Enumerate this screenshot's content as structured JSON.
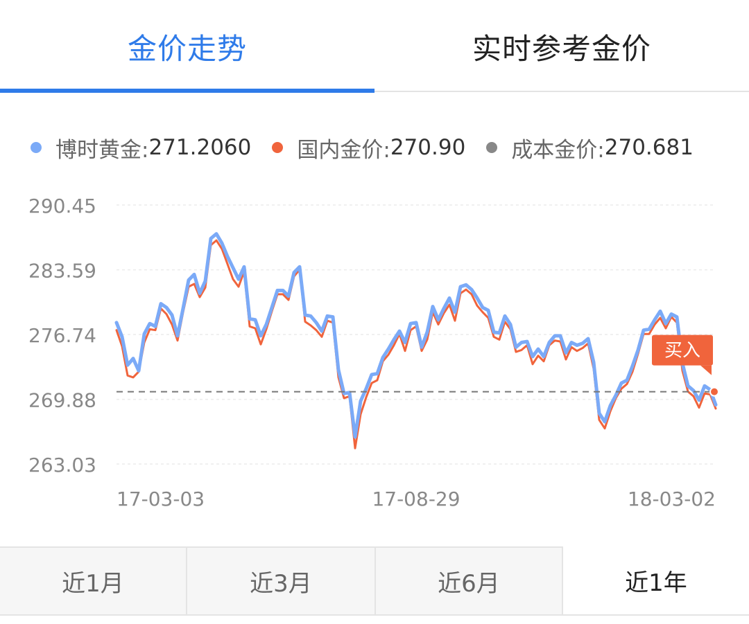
{
  "tabs": [
    {
      "label": "金价走势",
      "active": true
    },
    {
      "label": "实时参考金价",
      "active": false
    }
  ],
  "legend": [
    {
      "label": "博时黄金:",
      "value": "271.2060",
      "color": "#7baaf7"
    },
    {
      "label": "国内金价:",
      "value": "270.90",
      "color": "#f0643c"
    },
    {
      "label": "成本金价:",
      "value": "270.681",
      "color": "#888888"
    }
  ],
  "buy_label": "买入",
  "periods": [
    {
      "label": "近1月",
      "active": false
    },
    {
      "label": "近3月",
      "active": false
    },
    {
      "label": "近6月",
      "active": false
    },
    {
      "label": "近1年",
      "active": true
    }
  ],
  "chart_data": {
    "type": "line",
    "y_ticks": [
      "290.45",
      "283.59",
      "276.74",
      "269.88",
      "263.03"
    ],
    "ylim": [
      263.03,
      290.45
    ],
    "x_ticks": [
      "17-03-03",
      "17-08-29",
      "18-03-02"
    ],
    "x_range": [
      "2017-03-03",
      "2018-03-02"
    ],
    "grid": true,
    "reference_line": {
      "name": "成本金价",
      "value": 270.681
    },
    "series": [
      {
        "name": "博时黄金",
        "color": "#7baaf7",
        "values": [
          278.0,
          276.5,
          273.5,
          274.2,
          272.9,
          276.8,
          277.9,
          277.6,
          280.0,
          279.6,
          278.8,
          276.6,
          279.5,
          282.5,
          283.1,
          281.1,
          282.4,
          286.9,
          287.4,
          286.4,
          285.0,
          283.8,
          282.6,
          283.9,
          278.4,
          278.3,
          276.6,
          277.8,
          279.6,
          281.4,
          281.4,
          280.8,
          283.3,
          283.9,
          278.8,
          278.7,
          278.0,
          277.1,
          278.7,
          278.6,
          273.0,
          270.5,
          270.6,
          265.9,
          269.7,
          271.0,
          272.5,
          272.6,
          274.3,
          275.2,
          276.2,
          277.1,
          275.9,
          277.9,
          278.0,
          275.4,
          277.0,
          279.7,
          278.3,
          279.5,
          280.6,
          279.1,
          281.8,
          282.0,
          281.5,
          280.6,
          279.6,
          279.3,
          277.0,
          276.9,
          278.7,
          277.8,
          275.4,
          275.9,
          276.0,
          274.4,
          275.2,
          274.4,
          275.9,
          276.6,
          276.6,
          274.8,
          275.9,
          275.6,
          275.8,
          276.3,
          273.8,
          268.4,
          267.5,
          269.2,
          270.3,
          271.6,
          271.9,
          273.4,
          275.1,
          277.2,
          277.3,
          278.3,
          279.2,
          277.9,
          278.9,
          278.6,
          273.7,
          271.3,
          270.8,
          269.8,
          271.3,
          270.9,
          269.3
        ]
      },
      {
        "name": "国内金价",
        "color": "#f0643c",
        "values": [
          277.2,
          275.5,
          272.4,
          272.2,
          272.8,
          275.9,
          277.3,
          277.2,
          279.5,
          278.9,
          277.8,
          276.1,
          279.1,
          281.8,
          282.1,
          280.7,
          281.7,
          286.2,
          286.7,
          285.8,
          284.2,
          282.6,
          281.8,
          283.4,
          277.6,
          277.4,
          275.7,
          277.3,
          279.2,
          281.0,
          281.0,
          280.4,
          282.9,
          283.6,
          278.1,
          277.7,
          277.2,
          276.5,
          278.2,
          278.0,
          272.2,
          270.0,
          270.2,
          264.7,
          268.3,
          270.1,
          271.6,
          271.9,
          273.9,
          274.6,
          275.6,
          276.8,
          275.0,
          277.2,
          277.6,
          275.0,
          276.2,
          279.1,
          277.8,
          279.0,
          279.9,
          278.2,
          281.1,
          281.5,
          281.0,
          279.8,
          279.1,
          278.5,
          276.5,
          276.2,
          278.1,
          277.3,
          274.9,
          275.1,
          275.6,
          273.6,
          274.5,
          273.9,
          275.6,
          276.1,
          276.0,
          274.1,
          275.4,
          275.0,
          275.3,
          275.8,
          273.1,
          267.7,
          266.8,
          268.6,
          270.0,
          271.0,
          271.5,
          272.8,
          274.7,
          276.8,
          276.8,
          277.8,
          278.5,
          277.4,
          278.6,
          278.0,
          272.9,
          270.7,
          270.2,
          269.0,
          270.5,
          270.4,
          268.9
        ]
      }
    ]
  }
}
